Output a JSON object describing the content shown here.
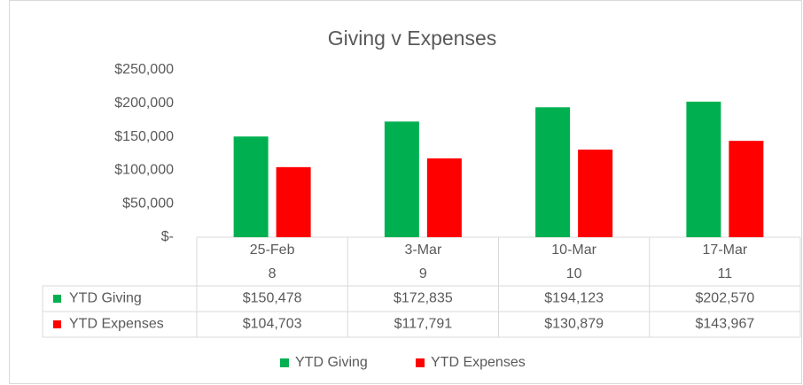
{
  "chart_data": {
    "type": "bar",
    "title": "Giving v Expenses",
    "categories": [
      "25-Feb",
      "3-Mar",
      "10-Mar",
      "17-Mar"
    ],
    "category_numbers": [
      8,
      9,
      10,
      11
    ],
    "series": [
      {
        "name": "YTD Giving",
        "color": "#00b050",
        "values": [
          150478,
          172835,
          194123,
          202570
        ],
        "value_labels": [
          "$150,478",
          "$172,835",
          "$194,123",
          "$202,570"
        ]
      },
      {
        "name": "YTD Expenses",
        "color": "#ff0000",
        "values": [
          104703,
          117791,
          130879,
          143967
        ],
        "value_labels": [
          "$104,703",
          "$117,791",
          "$130,879",
          "$143,967"
        ]
      }
    ],
    "ylim": [
      0,
      250000
    ],
    "yticks": [
      {
        "value": 0,
        "label": "$-"
      },
      {
        "value": 50000,
        "label": "$50,000"
      },
      {
        "value": 100000,
        "label": "$100,000"
      },
      {
        "value": 150000,
        "label": "$150,000"
      },
      {
        "value": 200000,
        "label": "$200,000"
      },
      {
        "value": 250000,
        "label": "$250,000"
      }
    ],
    "legend": "bottom"
  }
}
